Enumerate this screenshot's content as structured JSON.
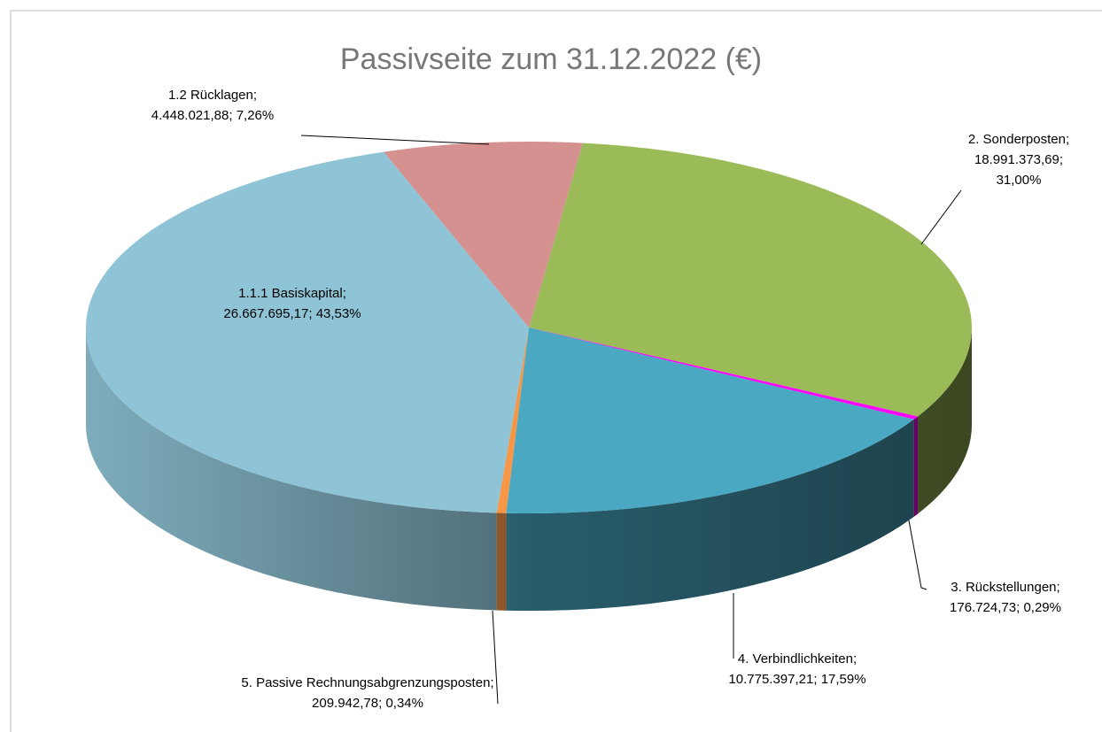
{
  "chart_data": {
    "type": "pie3d",
    "title": "Passivseite zum 31.12.2022 (€)",
    "categories": [
      "2. Sonderposten",
      "3. Rückstellungen",
      "4. Verbindlichkeiten",
      "5. Passive Rechnungsabgrenzungsposten",
      "1.1.1 Basiskapital",
      "1.2 Rücklagen"
    ],
    "values": [
      18991373.69,
      176724.73,
      10775397.21,
      209942.78,
      26667695.17,
      4448021.88
    ],
    "value_labels": [
      "18.991.373,69",
      "176.724,73",
      "10.775.397,21",
      "209.942,78",
      "26.667.695,17",
      "4.448.021,88"
    ],
    "percentages": [
      31.0,
      0.29,
      17.59,
      0.34,
      43.53,
      7.26
    ],
    "percentage_labels": [
      "31,00%",
      "0,29%",
      "17,59%",
      "0,34%",
      "43,53%",
      "7,26%"
    ],
    "label_separator": ";",
    "colors": [
      "#9bbb59",
      "#ff00ff",
      "#4aa8c2",
      "#f79646",
      "#8fc4d6",
      "#d49190"
    ]
  }
}
